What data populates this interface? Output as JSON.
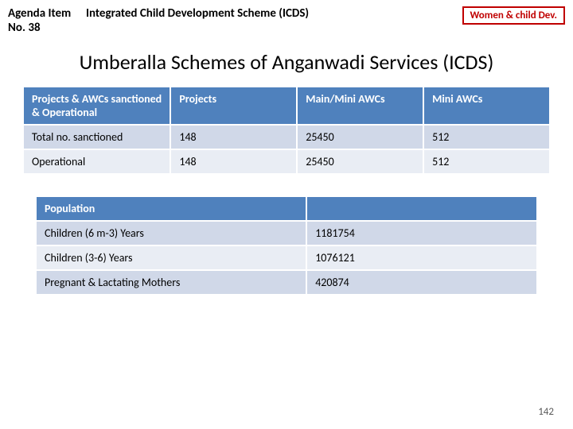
{
  "header": {
    "agenda_label_line1": "Agenda Item",
    "agenda_label_line2": "No. 38",
    "agenda_title": "Integrated Child Development Scheme (ICDS)",
    "dept_badge": "Women & child Dev."
  },
  "main_title": "Umberalla Schemes of Anganwadi Services (ICDS)",
  "table1": {
    "headers": [
      "Projects & AWCs sanctioned & Operational",
      "Projects",
      "Main/Mini AWCs",
      "Mini AWCs"
    ],
    "rows": [
      [
        "Total no. sanctioned",
        "148",
        "25450",
        "512"
      ],
      [
        "Operational",
        "148",
        "25450",
        "512"
      ]
    ],
    "header_bg": "#4f81bd",
    "header_color": "#ffffff",
    "row_bg_odd": "#d0d8e8",
    "row_bg_even": "#e9edf4",
    "col_widths_pct": [
      28,
      24,
      24,
      24
    ]
  },
  "table2": {
    "headers": [
      "Population",
      ""
    ],
    "rows": [
      [
        "Children (6 m-3) Years",
        "1181754"
      ],
      [
        "Children (3-6) Years",
        "1076121"
      ],
      [
        "Pregnant & Lactating Mothers",
        "420874"
      ]
    ],
    "header_bg": "#4f81bd",
    "header_color": "#ffffff",
    "row_bg_a": "#d0d8e8",
    "row_bg_b": "#e9edf4",
    "col_widths_pct": [
      54,
      46
    ]
  },
  "page_number": "142",
  "colors": {
    "badge_border": "#c00000",
    "badge_text": "#c00000",
    "page_num": "#595959",
    "background": "#ffffff"
  }
}
